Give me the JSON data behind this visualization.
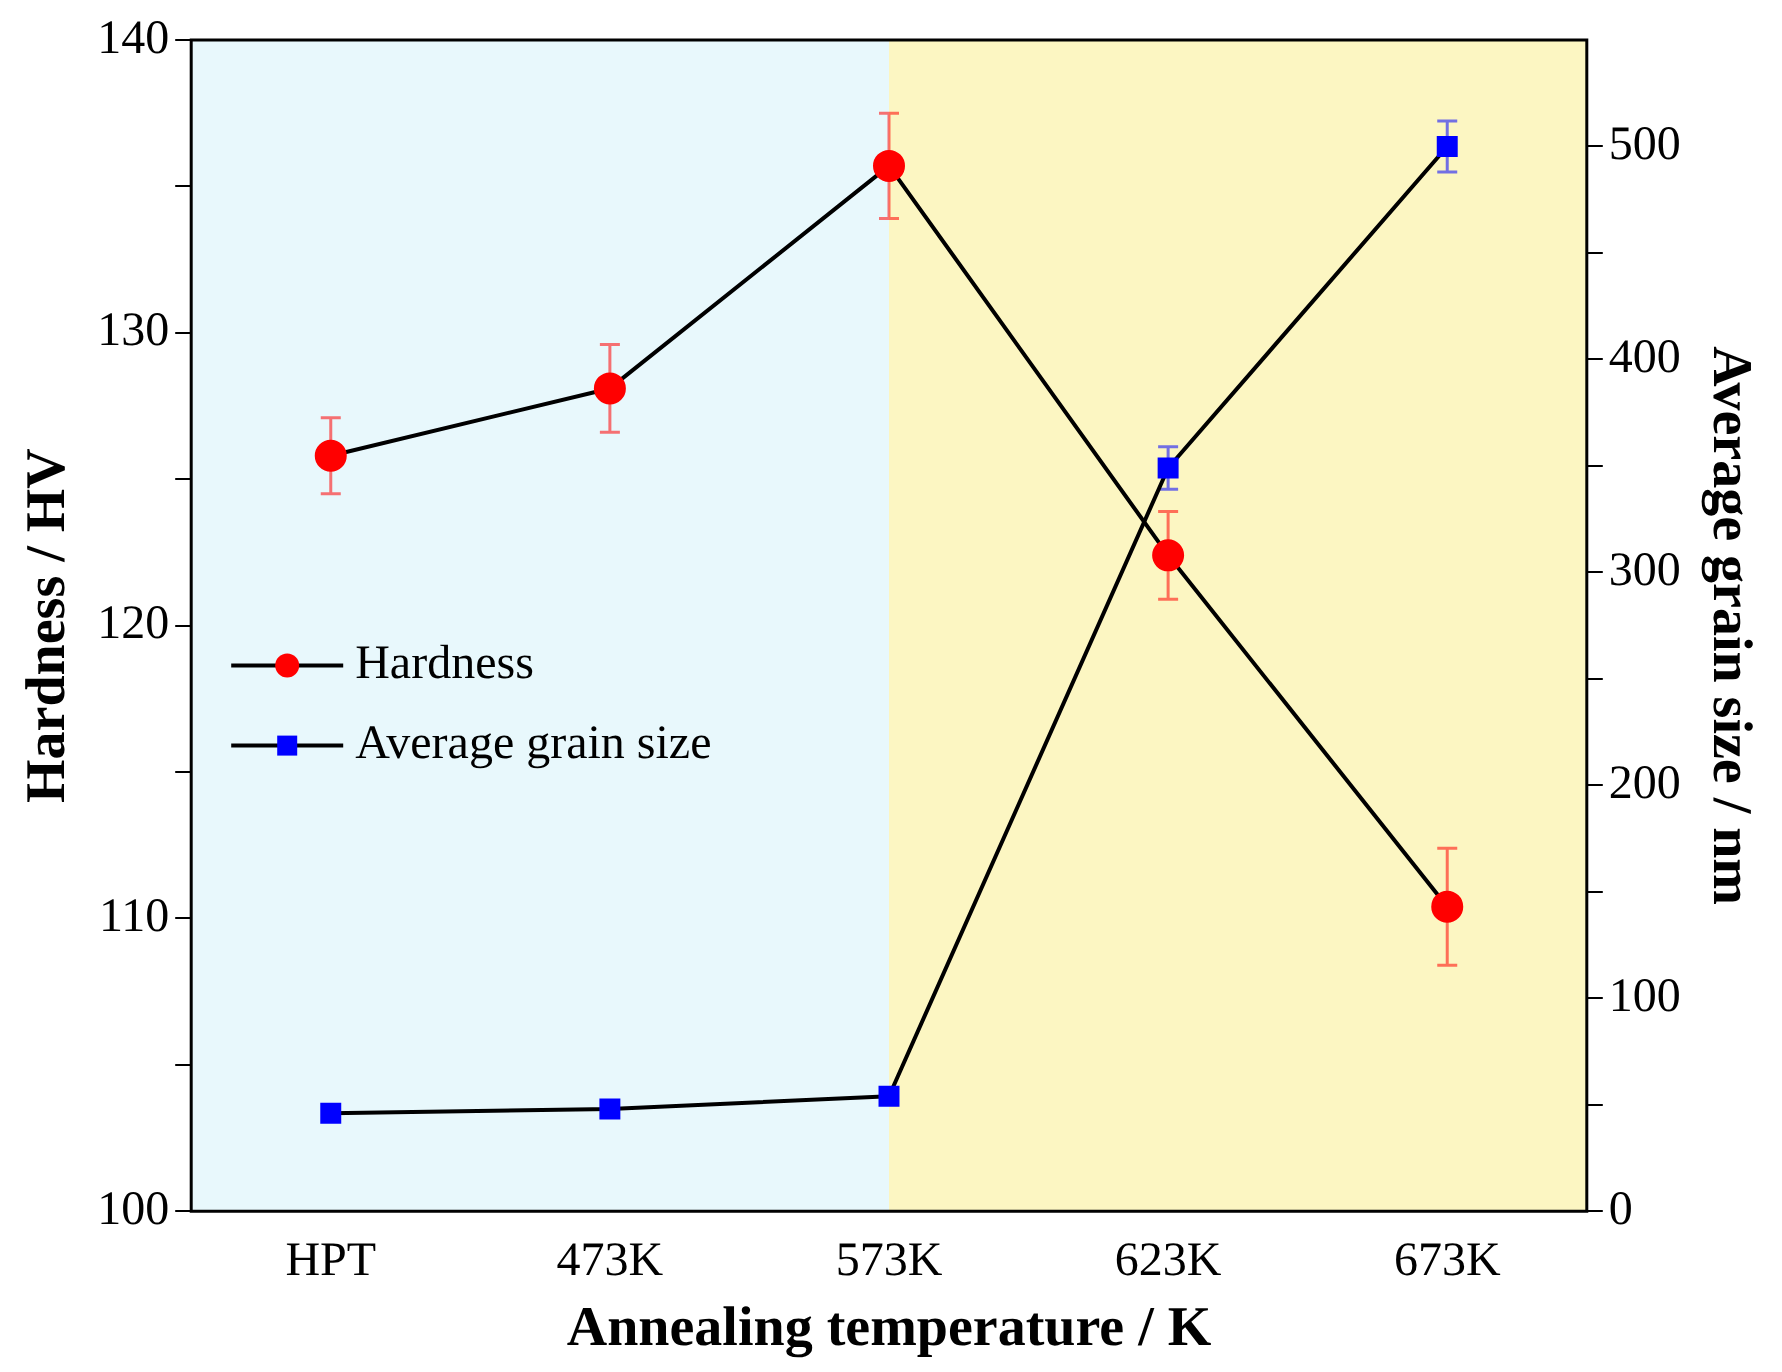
{
  "chart_data": {
    "type": "line",
    "xlabel": "Annealing temperature / K",
    "ylabel": "Hardness / HV",
    "y2label": "Average grain size / nm",
    "categories": [
      "HPT",
      "473K",
      "573K",
      "623K",
      "673K"
    ],
    "series": [
      {
        "name": "Hardness",
        "color": "#ff0000",
        "values": [
          125.8,
          128.1,
          135.7,
          122.4,
          110.4
        ],
        "errors": [
          1.3,
          1.5,
          1.8,
          1.5,
          2
        ],
        "marker": "circle"
      },
      {
        "name": "Average grain size",
        "color": "#0000ff",
        "axis": "y2",
        "values": [
          46,
          48,
          54,
          349,
          500
        ],
        "errors": [
          null,
          null,
          null,
          10,
          12
        ],
        "marker": "square"
      }
    ],
    "ylim": [
      100,
      140
    ],
    "yticks": [
      100,
      {
        "value": 105,
        "label": null
      },
      110,
      {
        "value": 115,
        "label": null
      },
      120,
      {
        "value": 125,
        "label": null
      },
      130,
      {
        "value": 135,
        "label": null
      },
      140
    ],
    "y2lim": [
      0,
      550
    ],
    "y2ticks": [
      0,
      {
        "value": 50,
        "label": null
      },
      100,
      {
        "value": 150,
        "label": null
      },
      200,
      {
        "value": 250,
        "label": null
      },
      300,
      {
        "value": 350,
        "label": null
      },
      400,
      {
        "value": 450,
        "label": null
      },
      500
    ],
    "bands": [
      {
        "axis": "x",
        "from": "HPT",
        "to": "573K",
        "color": "#e8f8fc"
      },
      {
        "axis": "x",
        "from": "573K",
        "to": "673K",
        "color": "#fcf6c2"
      }
    ],
    "legend": "left",
    "grid": false
  }
}
